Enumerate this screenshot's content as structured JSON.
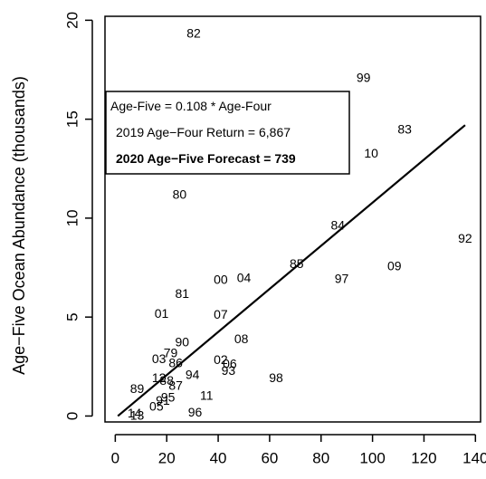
{
  "chart_data": {
    "type": "scatter",
    "title": "",
    "xlabel": "",
    "ylabel": "Age−Five Ocean Abundance (thousands)",
    "xlim": [
      -4,
      142
    ],
    "ylim": [
      -0.3,
      20.2
    ],
    "x_ticks": [
      0,
      20,
      40,
      60,
      80,
      100,
      120,
      140
    ],
    "y_ticks": [
      0,
      5,
      10,
      15,
      20
    ],
    "x_tick_labels": [
      "0",
      "20",
      "40",
      "60",
      "80",
      "100",
      "120",
      "140"
    ],
    "y_tick_labels": [
      "0",
      "5",
      "10",
      "15",
      "20"
    ],
    "grid": false,
    "points": [
      {
        "label": "82",
        "x": 30.5,
        "y": 19.35
      },
      {
        "label": "99",
        "x": 96.5,
        "y": 17.1
      },
      {
        "label": "83",
        "x": 112.5,
        "y": 14.5
      },
      {
        "label": "10",
        "x": 99.5,
        "y": 13.3
      },
      {
        "label": "80",
        "x": 25.0,
        "y": 11.2
      },
      {
        "label": "84",
        "x": 86.5,
        "y": 9.65
      },
      {
        "label": "92",
        "x": 136.0,
        "y": 9.0
      },
      {
        "label": "85",
        "x": 70.5,
        "y": 7.7
      },
      {
        "label": "09",
        "x": 108.5,
        "y": 7.6
      },
      {
        "label": "04",
        "x": 50.0,
        "y": 7.0
      },
      {
        "label": "97",
        "x": 88.0,
        "y": 6.95
      },
      {
        "label": "00",
        "x": 41.0,
        "y": 6.9
      },
      {
        "label": "81",
        "x": 26.0,
        "y": 6.2
      },
      {
        "label": "01",
        "x": 18.0,
        "y": 5.2
      },
      {
        "label": "07",
        "x": 41.0,
        "y": 5.15
      },
      {
        "label": "90",
        "x": 26.0,
        "y": 3.75
      },
      {
        "label": "08",
        "x": 49.0,
        "y": 3.9
      },
      {
        "label": "79",
        "x": 21.5,
        "y": 3.2
      },
      {
        "label": "03",
        "x": 17.0,
        "y": 2.9
      },
      {
        "label": "86",
        "x": 23.5,
        "y": 2.7
      },
      {
        "label": "02",
        "x": 41.0,
        "y": 2.85
      },
      {
        "label": "06",
        "x": 44.5,
        "y": 2.65
      },
      {
        "label": "93",
        "x": 44.0,
        "y": 2.3
      },
      {
        "label": "94",
        "x": 30.0,
        "y": 2.1
      },
      {
        "label": "98",
        "x": 62.5,
        "y": 1.95
      },
      {
        "label": "12",
        "x": 17.0,
        "y": 1.95
      },
      {
        "label": "88",
        "x": 20.0,
        "y": 1.8
      },
      {
        "label": "87",
        "x": 23.5,
        "y": 1.55
      },
      {
        "label": "89",
        "x": 8.5,
        "y": 1.4
      },
      {
        "label": "11",
        "x": 35.5,
        "y": 1.05
      },
      {
        "label": "95",
        "x": 20.5,
        "y": 0.95
      },
      {
        "label": "91",
        "x": 18.5,
        "y": 0.8
      },
      {
        "label": "05",
        "x": 16.0,
        "y": 0.5
      },
      {
        "label": "96",
        "x": 31.0,
        "y": 0.2
      },
      {
        "label": "14",
        "x": 7.5,
        "y": 0.15
      },
      {
        "label": "13",
        "x": 8.5,
        "y": 0.05
      }
    ],
    "fit_line": {
      "x": [
        1,
        136
      ],
      "y": [
        0,
        14.7
      ]
    }
  },
  "annotation": {
    "line1": "Age-Five = 0.108 * Age-Four",
    "line2": "2019 Age−Four Return = 6,867",
    "line3": "2020 Age−Five Forecast = 739"
  }
}
